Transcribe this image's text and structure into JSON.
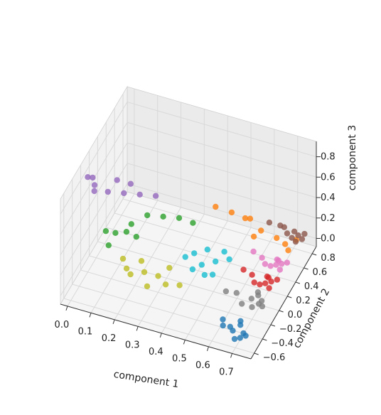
{
  "chart_data": {
    "type": "scatter",
    "projection": "3d",
    "title": "",
    "xlabel": "component 1",
    "ylabel": "component 2",
    "zlabel": "component 3",
    "x_ticks": [
      "0.0",
      "0.1",
      "0.2",
      "0.3",
      "0.4",
      "0.5",
      "0.6",
      "0.7"
    ],
    "y_ticks": [
      "−0.6",
      "−0.4",
      "−0.2",
      "0.0",
      "0.2",
      "0.4",
      "0.6",
      "0.8"
    ],
    "z_ticks": [
      "0.0",
      "0.2",
      "0.4",
      "0.6",
      "0.8"
    ],
    "xlim": [
      -0.03,
      0.78
    ],
    "ylim": [
      -0.68,
      0.9
    ],
    "zlim": [
      -0.08,
      0.95
    ],
    "grid": true,
    "legend": "none",
    "series": [
      {
        "color": "#1f77b4",
        "points": [
          [
            0.7,
            -0.62,
            0.02
          ],
          [
            0.72,
            -0.6,
            0.03
          ],
          [
            0.68,
            -0.55,
            0.04
          ],
          [
            0.74,
            -0.58,
            0.05
          ],
          [
            0.66,
            -0.5,
            0.03
          ],
          [
            0.7,
            -0.48,
            0.06
          ],
          [
            0.62,
            -0.45,
            0.04
          ],
          [
            0.72,
            -0.52,
            0.02
          ],
          [
            0.64,
            -0.56,
            0.07
          ],
          [
            0.69,
            -0.42,
            0.05
          ]
        ]
      },
      {
        "color": "#ff7f0e",
        "points": [
          [
            0.66,
            0.62,
            0.12
          ],
          [
            0.7,
            0.6,
            0.1
          ],
          [
            0.74,
            0.64,
            0.14
          ],
          [
            0.6,
            0.58,
            0.18
          ],
          [
            0.55,
            0.6,
            0.25
          ],
          [
            0.48,
            0.55,
            0.3
          ],
          [
            0.42,
            0.5,
            0.35
          ],
          [
            0.52,
            0.65,
            0.2
          ],
          [
            0.72,
            0.56,
            0.08
          ],
          [
            0.58,
            0.52,
            0.15
          ]
        ]
      },
      {
        "color": "#2ca02c",
        "points": [
          [
            0.1,
            -0.1,
            0.3
          ],
          [
            0.05,
            -0.05,
            0.25
          ],
          [
            0.15,
            0.0,
            0.35
          ],
          [
            0.2,
            0.1,
            0.4
          ],
          [
            0.08,
            -0.15,
            0.2
          ],
          [
            0.25,
            0.2,
            0.35
          ],
          [
            0.3,
            0.3,
            0.3
          ],
          [
            0.12,
            0.05,
            0.22
          ],
          [
            0.18,
            -0.05,
            0.28
          ],
          [
            0.35,
            0.35,
            0.25
          ]
        ]
      },
      {
        "color": "#d62728",
        "points": [
          [
            0.7,
            0.12,
            0.05
          ],
          [
            0.72,
            0.15,
            0.06
          ],
          [
            0.68,
            0.1,
            0.04
          ],
          [
            0.74,
            0.18,
            0.07
          ],
          [
            0.64,
            0.14,
            0.08
          ],
          [
            0.7,
            0.2,
            0.05
          ],
          [
            0.66,
            0.08,
            0.06
          ],
          [
            0.72,
            0.1,
            0.03
          ],
          [
            0.6,
            0.16,
            0.09
          ],
          [
            0.69,
            0.22,
            0.04
          ]
        ]
      },
      {
        "color": "#9467bd",
        "points": [
          [
            0.0,
            -0.2,
            0.85
          ],
          [
            0.02,
            -0.15,
            0.75
          ],
          [
            0.01,
            -0.1,
            0.65
          ],
          [
            0.05,
            0.0,
            0.6
          ],
          [
            0.1,
            0.1,
            0.55
          ],
          [
            0.15,
            0.2,
            0.5
          ],
          [
            0.2,
            0.3,
            0.45
          ],
          [
            0.03,
            -0.25,
            0.9
          ],
          [
            0.08,
            0.05,
            0.7
          ],
          [
            0.12,
            0.15,
            0.62
          ]
        ]
      },
      {
        "color": "#8c564b",
        "points": [
          [
            0.72,
            0.8,
            0.06
          ],
          [
            0.74,
            0.78,
            0.05
          ],
          [
            0.7,
            0.82,
            0.07
          ],
          [
            0.68,
            0.76,
            0.08
          ],
          [
            0.66,
            0.8,
            0.1
          ],
          [
            0.72,
            0.74,
            0.04
          ],
          [
            0.6,
            0.78,
            0.12
          ],
          [
            0.74,
            0.84,
            0.06
          ],
          [
            0.64,
            0.82,
            0.09
          ],
          [
            0.7,
            0.76,
            0.05
          ]
        ]
      },
      {
        "color": "#e377c2",
        "points": [
          [
            0.7,
            0.38,
            0.05
          ],
          [
            0.72,
            0.4,
            0.06
          ],
          [
            0.68,
            0.36,
            0.04
          ],
          [
            0.74,
            0.42,
            0.07
          ],
          [
            0.64,
            0.38,
            0.08
          ],
          [
            0.7,
            0.44,
            0.05
          ],
          [
            0.66,
            0.34,
            0.06
          ],
          [
            0.72,
            0.36,
            0.03
          ],
          [
            0.6,
            0.4,
            0.1
          ],
          [
            0.69,
            0.46,
            0.04
          ]
        ]
      },
      {
        "color": "#7f7f7f",
        "points": [
          [
            0.7,
            -0.2,
            0.04
          ],
          [
            0.72,
            -0.15,
            0.05
          ],
          [
            0.68,
            -0.1,
            0.04
          ],
          [
            0.74,
            -0.18,
            0.06
          ],
          [
            0.62,
            -0.12,
            0.07
          ],
          [
            0.7,
            -0.05,
            0.05
          ],
          [
            0.66,
            -0.22,
            0.06
          ],
          [
            0.72,
            -0.08,
            0.03
          ],
          [
            0.58,
            -0.15,
            0.08
          ],
          [
            0.69,
            0.0,
            0.04
          ]
        ]
      },
      {
        "color": "#bcbd22",
        "points": [
          [
            0.2,
            -0.3,
            0.1
          ],
          [
            0.25,
            -0.25,
            0.12
          ],
          [
            0.3,
            -0.2,
            0.08
          ],
          [
            0.35,
            -0.3,
            0.1
          ],
          [
            0.15,
            -0.2,
            0.15
          ],
          [
            0.4,
            -0.25,
            0.09
          ],
          [
            0.22,
            -0.15,
            0.14
          ],
          [
            0.28,
            -0.35,
            0.07
          ],
          [
            0.33,
            -0.1,
            0.11
          ],
          [
            0.18,
            -0.28,
            0.13
          ]
        ]
      },
      {
        "color": "#17becf",
        "points": [
          [
            0.45,
            0.0,
            0.15
          ],
          [
            0.5,
            0.05,
            0.18
          ],
          [
            0.42,
            -0.05,
            0.12
          ],
          [
            0.55,
            0.1,
            0.2
          ],
          [
            0.4,
            0.1,
            0.16
          ],
          [
            0.48,
            -0.1,
            0.14
          ],
          [
            0.52,
            0.15,
            0.22
          ],
          [
            0.38,
            0.0,
            0.18
          ],
          [
            0.46,
            0.08,
            0.25
          ],
          [
            0.5,
            -0.02,
            0.1
          ]
        ]
      }
    ]
  }
}
